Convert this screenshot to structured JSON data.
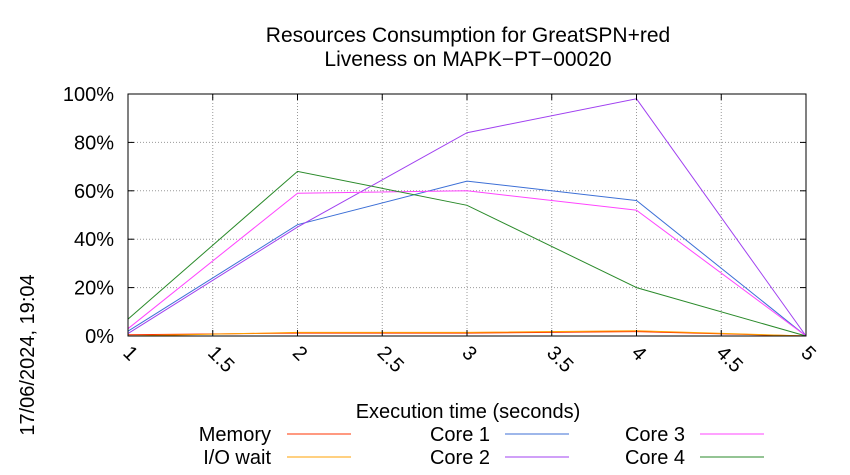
{
  "chart_data": {
    "type": "line",
    "title_lines": [
      "Resources Consumption for GreatSPN+red",
      "Liveness on MAPK−PT−00020"
    ],
    "xlabel": "Execution time (seconds)",
    "ylabel": "",
    "timestamp": "17/06/2024, 19:04",
    "xlim": [
      1,
      5
    ],
    "ylim": [
      0,
      100
    ],
    "x_ticks": [
      1,
      1.5,
      2,
      2.5,
      3,
      3.5,
      4,
      4.5,
      5
    ],
    "x_tick_labels": [
      "1",
      "1.5",
      "2",
      "2.5",
      "3",
      "3.5",
      "4",
      "4.5",
      "5"
    ],
    "y_ticks": [
      0,
      20,
      40,
      60,
      80,
      100
    ],
    "y_tick_labels": [
      "0%",
      "20%",
      "40%",
      "60%",
      "80%",
      "100%"
    ],
    "grid": true,
    "legend_position": "bottom",
    "x": [
      1,
      2,
      3,
      4,
      5
    ],
    "series": [
      {
        "name": "Memory",
        "color": "#ff3300",
        "values": [
          0.5,
          1.2,
          1.2,
          1.8,
          0
        ]
      },
      {
        "name": "I/O wait",
        "color": "#ffa000",
        "values": [
          0,
          1.5,
          1.5,
          2.2,
          0
        ]
      },
      {
        "name": "Core 1",
        "color": "#3c6fd6",
        "values": [
          2,
          46,
          64,
          56,
          0
        ]
      },
      {
        "name": "Core 2",
        "color": "#a040f0",
        "values": [
          1,
          45,
          84,
          98,
          0
        ]
      },
      {
        "name": "Core 3",
        "color": "#ff44ff",
        "values": [
          3,
          59,
          60,
          52,
          0
        ]
      },
      {
        "name": "Core 4",
        "color": "#2a8a2a",
        "values": [
          7,
          68,
          54,
          20,
          0
        ]
      }
    ]
  }
}
